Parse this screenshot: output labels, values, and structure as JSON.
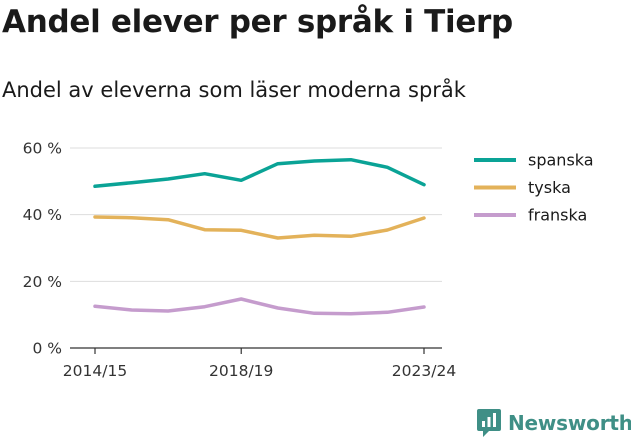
{
  "header": {
    "title": "Andel elever per språk i Tierp",
    "subtitle": "Andel av eleverna som läser moderna språk"
  },
  "brand": {
    "name": "Newsworthy",
    "icon": "newsworthy-logo-icon",
    "color": "#3f8f86"
  },
  "chart_data": {
    "type": "line",
    "x": [
      "2014/15",
      "2015/16",
      "2016/17",
      "2017/18",
      "2018/19",
      "2019/20",
      "2020/21",
      "2021/22",
      "2022/23",
      "2023/24"
    ],
    "x_tick_labels": [
      "2014/15",
      "2018/19",
      "2023/24"
    ],
    "y_tick_labels": [
      "0 %",
      "20 %",
      "40 %",
      "60 %"
    ],
    "y_ticks": [
      0,
      20,
      40,
      60
    ],
    "ylim": [
      0,
      60
    ],
    "grid": true,
    "legend_position": "right",
    "series": [
      {
        "name": "spanska",
        "color": "#0aa396",
        "values": [
          48.5,
          49.6,
          50.7,
          52.3,
          50.3,
          55.3,
          56.1,
          56.5,
          54.2,
          49.0
        ]
      },
      {
        "name": "tyska",
        "color": "#e3b25a",
        "values": [
          39.3,
          39.1,
          38.5,
          35.5,
          35.3,
          33.0,
          33.8,
          33.5,
          35.4,
          39.0
        ]
      },
      {
        "name": "franska",
        "color": "#c59ccd",
        "values": [
          12.5,
          11.4,
          11.1,
          12.4,
          14.7,
          12.0,
          10.4,
          10.3,
          10.7,
          12.3
        ]
      }
    ]
  }
}
